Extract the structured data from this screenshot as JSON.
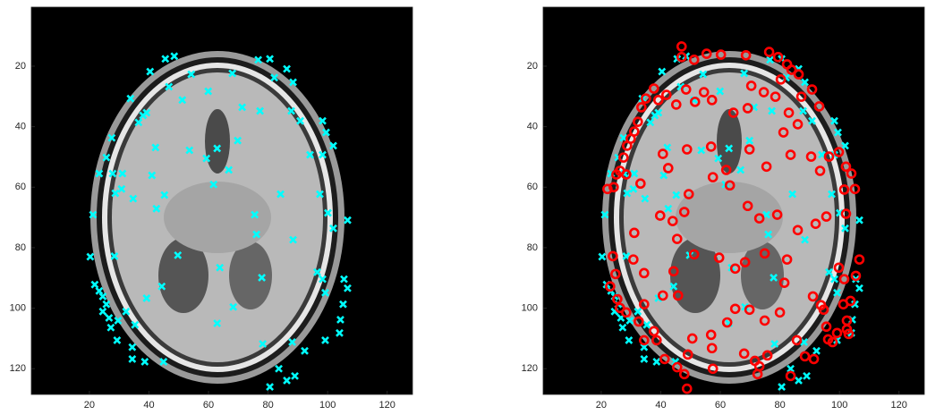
{
  "chart_data": [
    {
      "type": "scatter",
      "xlim": [
        0.5,
        128.5
      ],
      "ylim": [
        0.5,
        128.5
      ],
      "y_reversed": true,
      "xticks": [
        20,
        40,
        60,
        80,
        100,
        120
      ],
      "yticks": [
        20,
        40,
        60,
        80,
        100,
        120
      ],
      "series": [
        {
          "color": "#00ffff",
          "marker": "x",
          "x": [
            45.5,
            48.5,
            40.4,
            54.2,
            46.7,
            33.8,
            39.2,
            38,
            36.5,
            51.2,
            59.9,
            68,
            76.7,
            80.6,
            86.3,
            82.1,
            88.4,
            71.3,
            77.3,
            87.8,
            90.8,
            98.3,
            99.5,
            101.9,
            94.1,
            98.3,
            27.5,
            25.7,
            23.3,
            27.8,
            31.1,
            28.7,
            34.7,
            21.2,
            42.5,
            45.2,
            30.8,
            41,
            42.2,
            53.6,
            59.3,
            62.9,
            61.7,
            69.8,
            66.8,
            84.2,
            97.4,
            106.7,
            100.1,
            101.9,
            88.4,
            75.5,
            76.1,
            49.7,
            20.3,
            28.4,
            63.8,
            77.9,
            44.3,
            39.2,
            68.3,
            62.9,
            78.2,
            88.1,
            92.3,
            83.6,
            86.3,
            89,
            80.6,
            96.5,
            98.3,
            99.2,
            105.5,
            106.7,
            105.2,
            104.3,
            104,
            99.2,
            21.8,
            23.3,
            24.5,
            25.7,
            24.5,
            26.6,
            29.6,
            27.2,
            29.3,
            34.4,
            34.4,
            38.6,
            35.3,
            32.3,
            44.9
          ],
          "y": [
            17.6,
            16.7,
            21.8,
            22.7,
            26.8,
            30.7,
            35.4,
            36.3,
            38.6,
            31.2,
            28.3,
            22.4,
            17.9,
            17.6,
            20.9,
            23.8,
            25.3,
            33.6,
            34.8,
            34.8,
            38.1,
            38.1,
            41.9,
            46.3,
            49.3,
            49.3,
            43.7,
            50.2,
            55.5,
            55.5,
            55.5,
            62,
            63.8,
            69.1,
            67.1,
            62.6,
            60.6,
            56.1,
            46.9,
            47.8,
            50.5,
            47.2,
            59.1,
            44.6,
            54.3,
            62.3,
            62.3,
            70.9,
            68.5,
            73.6,
            77.4,
            69.1,
            75.6,
            82.5,
            83,
            82.8,
            86.6,
            89.9,
            92.8,
            96.7,
            99.6,
            105,
            111.8,
            111.2,
            114.1,
            120,
            123.9,
            122.4,
            126,
            88.1,
            90.4,
            94.9,
            90.4,
            93.4,
            98.7,
            103.8,
            108.2,
            110.6,
            92.2,
            94.3,
            96.1,
            98.7,
            101.1,
            103.2,
            104.1,
            106.4,
            110.6,
            112.9,
            116.8,
            117.7,
            105.5,
            101.1,
            117.7
          ]
        }
      ]
    },
    {
      "type": "scatter",
      "xlim": [
        0.5,
        128.5
      ],
      "ylim": [
        0.5,
        128.5
      ],
      "y_reversed": true,
      "xticks": [
        20,
        40,
        60,
        80,
        100,
        120
      ],
      "yticks": [
        20,
        40,
        60,
        80,
        100,
        120
      ],
      "series": [
        {
          "color": "#00ffff",
          "marker": "x",
          "x": [
            45.5,
            48.5,
            40.4,
            54.2,
            46.7,
            33.8,
            39.2,
            38,
            36.5,
            51.2,
            59.9,
            68,
            76.7,
            80.6,
            86.3,
            82.1,
            88.4,
            71.3,
            77.3,
            87.8,
            90.8,
            98.3,
            99.5,
            101.9,
            94.1,
            98.3,
            27.5,
            25.7,
            23.3,
            27.8,
            31.1,
            28.7,
            34.7,
            21.2,
            42.5,
            45.2,
            30.8,
            41,
            42.2,
            53.6,
            59.3,
            62.9,
            61.7,
            69.8,
            66.8,
            84.2,
            97.4,
            106.7,
            100.1,
            101.9,
            88.4,
            75.5,
            76.1,
            49.7,
            20.3,
            28.4,
            63.8,
            77.9,
            44.3,
            39.2,
            68.3,
            62.9,
            78.2,
            88.1,
            92.3,
            83.6,
            86.3,
            89,
            80.6,
            96.5,
            98.3,
            99.2,
            105.5,
            106.7,
            105.2,
            104.3,
            104,
            99.2,
            21.8,
            23.3,
            24.5,
            25.7,
            24.5,
            26.6,
            29.6,
            27.2,
            29.3,
            34.4,
            34.4,
            38.6,
            35.3,
            32.3,
            44.9
          ],
          "y": [
            17.6,
            16.7,
            21.8,
            22.7,
            26.8,
            30.7,
            35.4,
            36.3,
            38.6,
            31.2,
            28.3,
            22.4,
            17.9,
            17.6,
            20.9,
            23.8,
            25.3,
            33.6,
            34.8,
            34.8,
            38.1,
            38.1,
            41.9,
            46.3,
            49.3,
            49.3,
            43.7,
            50.2,
            55.5,
            55.5,
            55.5,
            62,
            63.8,
            69.1,
            67.1,
            62.6,
            60.6,
            56.1,
            46.9,
            47.8,
            50.5,
            47.2,
            59.1,
            44.6,
            54.3,
            62.3,
            62.3,
            70.9,
            68.5,
            73.6,
            77.4,
            69.1,
            75.6,
            82.5,
            83,
            82.8,
            86.6,
            89.9,
            92.8,
            96.7,
            99.6,
            105,
            111.8,
            111.2,
            114.1,
            120,
            123.9,
            122.4,
            126,
            88.1,
            90.4,
            94.9,
            90.4,
            93.4,
            98.7,
            103.8,
            108.2,
            110.6,
            92.2,
            94.3,
            96.1,
            98.7,
            101.1,
            103.2,
            104.1,
            106.4,
            110.6,
            112.9,
            116.8,
            117.7,
            105.5,
            101.1,
            117.7
          ]
        },
        {
          "color": "#ff0000",
          "marker": "o",
          "x": [
            47,
            47,
            51.2,
            55.4,
            60.2,
            68.6,
            76.4,
            79.4,
            82.4,
            83.9,
            86.3,
            80.3,
            70.4,
            74.6,
            78.5,
            87.2,
            90.8,
            93.2,
            86,
            83,
            69.2,
            64.4,
            57.2,
            54.5,
            51.5,
            48.5,
            45.2,
            41.9,
            39.2,
            37.7,
            35,
            33.5,
            32.3,
            31.1,
            29.9,
            28.7,
            27.5,
            26.3,
            25.1,
            24.2,
            22.1,
            28.4,
            33.2,
            40.7,
            42.5,
            48.8,
            56.9,
            62,
            69.8,
            75.5,
            81.2,
            83.6,
            90.5,
            93.5,
            96.5,
            99.8,
            102.2,
            104,
            105.2,
            101.6,
            102.2,
            95.6,
            92,
            86,
            79.1,
            73.1,
            69.2,
            63.2,
            57.5,
            49.4,
            47.9,
            39.8,
            44,
            45.5,
            31.1,
            23.9,
            30.8,
            34.4,
            44.3,
            45.8,
            51.2,
            59.6,
            65,
            68.3,
            74.9,
            82.4,
            81.5,
            80,
            74.9,
            69.8,
            65,
            62.3,
            56.9,
            57.2,
            57.5,
            68,
            71.6,
            73.1,
            72.5,
            75.8,
            91.1,
            93.8,
            94.7,
            95.6,
            96.2,
            101.3,
            102.5,
            102.5,
            103.1,
            99.2,
            97.7,
            99.8,
            101.6,
            106.7,
            105.5,
            103.7,
            34.4,
            24.8,
            23,
            25.4,
            28.4,
            32.6,
            34.4,
            38.6,
            41.3,
            45.5,
            49.1,
            50.6,
            37.7,
            47.9,
            48.8,
            85.7,
            88.4,
            91.4,
            83.6,
            26.3,
            40.7
          ],
          "y": [
            13.5,
            17,
            17.9,
            15.9,
            16.2,
            16.4,
            15.3,
            17,
            19.4,
            21.2,
            22.7,
            24.4,
            26.5,
            28.6,
            30.1,
            30.1,
            27.7,
            33.3,
            39.2,
            35.4,
            33.9,
            35.4,
            31.2,
            28.6,
            31.8,
            27.7,
            32.7,
            29.5,
            31.2,
            27.4,
            30.7,
            33.6,
            38.4,
            41.6,
            44,
            46.3,
            50.2,
            54.6,
            55.8,
            60,
            60.6,
            55.8,
            58.8,
            49,
            53.7,
            47.5,
            46.6,
            54.3,
            47.5,
            53.2,
            41.9,
            49.3,
            49.9,
            54.6,
            49.9,
            48.4,
            53.2,
            55.5,
            60.6,
            60.8,
            68.8,
            69.7,
            72.1,
            74.2,
            69.1,
            70.3,
            66.2,
            59.4,
            56.7,
            62.3,
            68.2,
            69.4,
            71.2,
            77.1,
            75.1,
            82.8,
            83.9,
            88.4,
            87.8,
            95.8,
            82.2,
            83.3,
            86.9,
            84.8,
            81.9,
            83.9,
            91.6,
            101.4,
            104.1,
            100.5,
            100.2,
            104.7,
            108.8,
            113.2,
            120,
            115,
            117.4,
            119.2,
            121.8,
            115.6,
            96.1,
            99,
            100.5,
            106.1,
            110.3,
            98.7,
            104.1,
            107,
            108.5,
            108.2,
            111.2,
            86.6,
            90.4,
            83.9,
            89.3,
            97.6,
            98.7,
            88.7,
            92.8,
            97,
            101.4,
            104.4,
            110.6,
            110.6,
            116.8,
            119.5,
            115.3,
            110,
            107.6,
            121.8,
            126.6,
            110.6,
            115.9,
            116.8,
            122.4,
            99.9,
            95.8
          ]
        }
      ]
    }
  ]
}
